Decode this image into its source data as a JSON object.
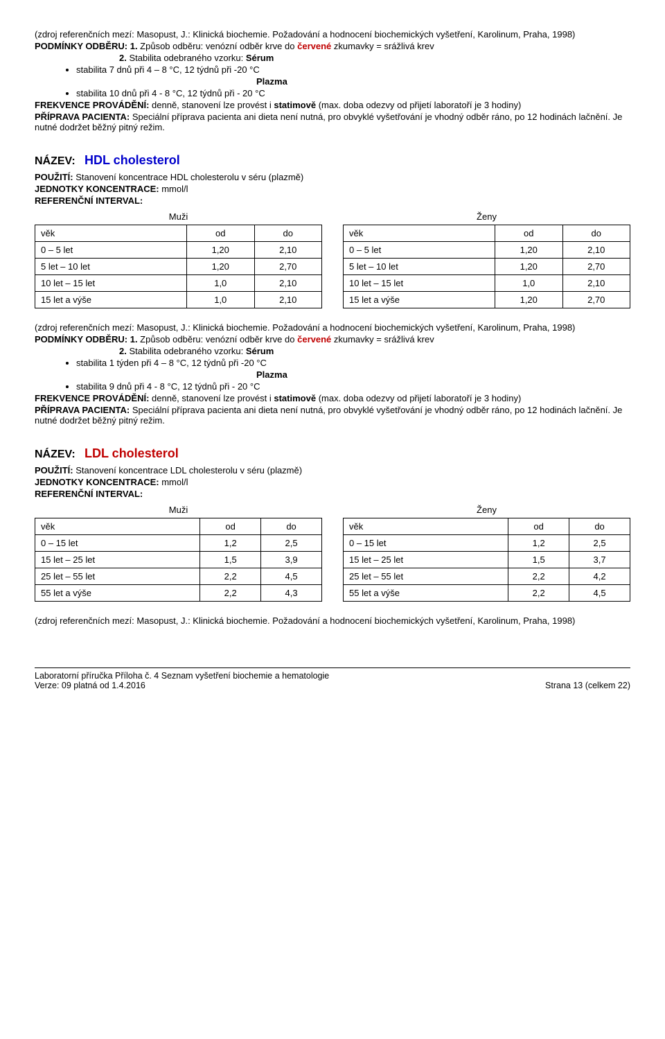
{
  "source_line": "(zdroj referenčních mezí: Masopust, J.: Klinická biochemie. Požadování a hodnocení biochemických vyšetření, Karolinum, Praha, 1998)",
  "podminky_label": "PODMÍNKY ODBĚRU: 1.",
  "podminky_text": " Způsob odběru: venózní odběr krve do ",
  "cervene": "červené",
  "podminky_tail": " zkumavky = srážlivá krev",
  "stabilita_label": "2.",
  "stabilita_text": " Stabilita odebraného vzorku: ",
  "serum": "Sérum",
  "plazma": "Plazma",
  "sec1": {
    "bullet1": "stabilita 7 dnů při 4 – 8 °C, 12 týdnů při -20 °C",
    "bullet2": "stabilita 10 dnů při 4 - 8 °C, 12 týdnů při - 20 °C"
  },
  "frekvence_label": "FREKVENCE PROVÁDĚNÍ:",
  "frekvence_text": " denně, stanovení lze provést i ",
  "statimove": "statimově",
  "frekvence_tail": " (max. doba odezvy od přijetí laboratoří je 3 hodiny)",
  "priprava_label": "PŘÍPRAVA PACIENTA:",
  "priprava_text": " Speciální příprava pacienta ani dieta není nutná, pro obvyklé vyšetřování je vhodný odběr ráno, po 12 hodinách lačnění. Je nutné dodržet běžný pitný režim.",
  "nazev_label": "NÁZEV:",
  "pouziti_label": "POUŽITÍ:",
  "jednotky_label": "JEDNOTKY KONCENTRACE:",
  "jednotky_val": " mmol/l",
  "refint_label": "REFERENČNÍ INTERVAL:",
  "muzi": "Muži",
  "zeny": "Ženy",
  "hdl": {
    "name": "HDL cholesterol",
    "pouziti": " Stanovení koncentrace HDL cholesterolu v séru (plazmě)",
    "columns": [
      "věk",
      "od",
      "do"
    ],
    "muzi_rows": [
      [
        "0 – 5 let",
        "1,20",
        "2,10"
      ],
      [
        "5 let – 10 let",
        "1,20",
        "2,70"
      ],
      [
        "10 let – 15 let",
        "1,0",
        "2,10"
      ],
      [
        "15 let a výše",
        "1,0",
        "2,10"
      ]
    ],
    "zeny_rows": [
      [
        "0 – 5 let",
        "1,20",
        "2,10"
      ],
      [
        "5 let – 10 let",
        "1,20",
        "2,70"
      ],
      [
        "10 let – 15 let",
        "1,0",
        "2,10"
      ],
      [
        "15 let a výše",
        "1,20",
        "2,70"
      ]
    ],
    "bullet1": "stabilita 1 týden při 4 – 8 °C, 12 týdnů při -20 °C",
    "bullet2": "stabilita 9 dnů při 4 - 8 °C, 12 týdnů při - 20 °C"
  },
  "ldl": {
    "name": "LDL cholesterol",
    "pouziti": " Stanovení koncentrace LDL cholesterolu v séru (plazmě)",
    "columns": [
      "věk",
      "od",
      "do"
    ],
    "muzi_rows": [
      [
        "0 – 15 let",
        "1,2",
        "2,5"
      ],
      [
        "15 let – 25 let",
        "1,5",
        "3,9"
      ],
      [
        "25 let – 55 let",
        "2,2",
        "4,5"
      ],
      [
        "55 let a výše",
        "2,2",
        "4,3"
      ]
    ],
    "zeny_rows": [
      [
        "0 – 15 let",
        "1,2",
        "2,5"
      ],
      [
        "15 let – 25 let",
        "1,5",
        "3,7"
      ],
      [
        "25 let – 55 let",
        "2,2",
        "4,2"
      ],
      [
        "55 let a výše",
        "2,2",
        "4,5"
      ]
    ]
  },
  "footer": {
    "line1": "Laboratorní příručka Příloha č. 4 Seznam vyšetření biochemie a hematologie",
    "line2": "Verze: 09 platná od 1.4.2016",
    "page": "Strana 13 (celkem 22)"
  }
}
